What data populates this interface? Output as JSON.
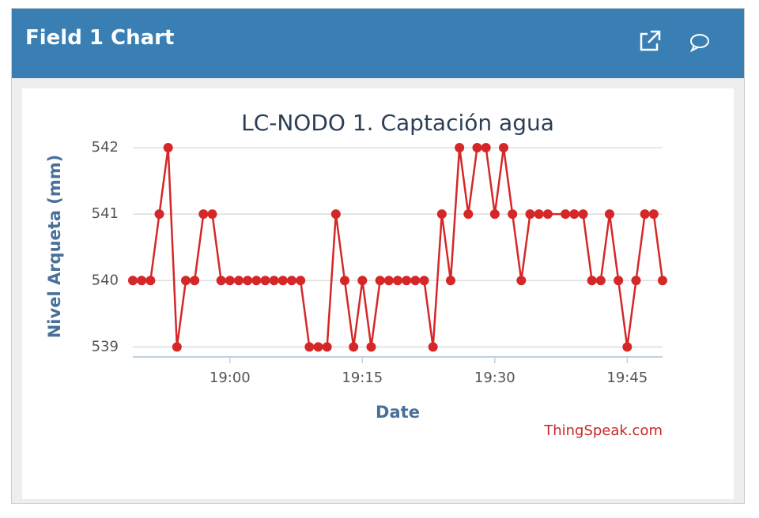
{
  "header": {
    "title": "Field 1 Chart"
  },
  "chart_data": {
    "type": "line",
    "title": "LC-NODO 1. Captación agua",
    "xlabel": "Date",
    "ylabel": "Nivel Arqueta (mm)",
    "credit": "ThingSpeak.com",
    "x": [
      "18:49",
      "18:50",
      "18:51",
      "18:52",
      "18:53",
      "18:54",
      "18:55",
      "18:56",
      "18:57",
      "18:58",
      "18:59",
      "19:00",
      "19:01",
      "19:02",
      "19:03",
      "19:04",
      "19:05",
      "19:06",
      "19:07",
      "19:08",
      "19:09",
      "19:10",
      "19:11",
      "19:12",
      "19:13",
      "19:14",
      "19:15",
      "19:16",
      "19:17",
      "19:18",
      "19:19",
      "19:20",
      "19:21",
      "19:22",
      "19:23",
      "19:24",
      "19:25",
      "19:26",
      "19:27",
      "19:28",
      "19:29",
      "19:30",
      "19:31",
      "19:32",
      "19:33",
      "19:34",
      "19:35",
      "19:36",
      "19:38",
      "19:39",
      "19:40",
      "19:41",
      "19:42",
      "19:43",
      "19:44",
      "19:45",
      "19:46",
      "19:47",
      "19:48",
      "19:49"
    ],
    "series": [
      {
        "name": "Field 1",
        "color": "#d62728",
        "values": [
          540,
          540,
          540,
          541,
          542,
          539,
          540,
          540,
          541,
          541,
          540,
          540,
          540,
          540,
          540,
          540,
          540,
          540,
          540,
          540,
          539,
          539,
          539,
          541,
          540,
          539,
          540,
          539,
          540,
          540,
          540,
          540,
          540,
          540,
          539,
          541,
          540,
          542,
          541,
          542,
          542,
          541,
          542,
          541,
          540,
          541,
          541,
          541,
          541,
          541,
          541,
          540,
          540,
          541,
          540,
          539,
          540,
          541,
          541,
          540
        ]
      }
    ],
    "xlim": [
      "18:49",
      "19:49"
    ],
    "xticks": [
      "19:00",
      "19:15",
      "19:30",
      "19:45"
    ],
    "ylim": [
      538.85,
      542
    ],
    "yticks": [
      539,
      540,
      541,
      542
    ],
    "grid": true
  }
}
